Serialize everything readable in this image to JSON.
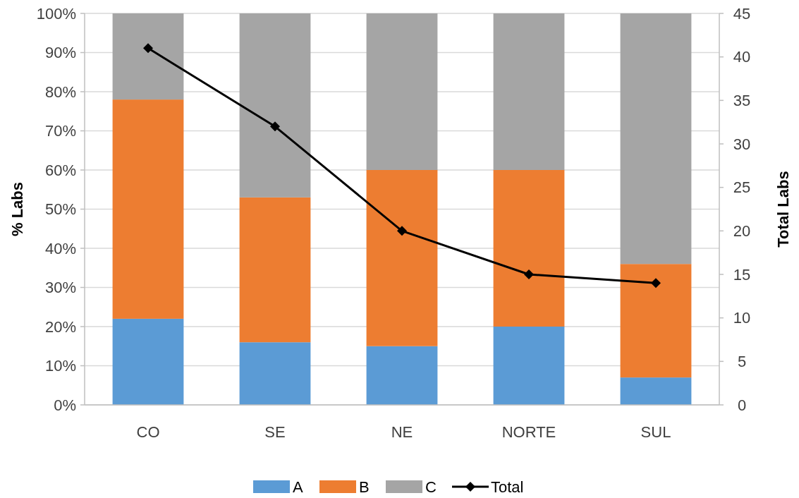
{
  "chart_data": {
    "type": "bar",
    "stacked": true,
    "categories": [
      "CO",
      "SE",
      "NE",
      "NORTE",
      "SUL"
    ],
    "ylabel": "% Labs",
    "y2label": "Total Labs",
    "series": [
      {
        "name": "A",
        "color": "#5b9bd5",
        "values": [
          22,
          16,
          15,
          20,
          7
        ]
      },
      {
        "name": "B",
        "color": "#ed7d31",
        "values": [
          56,
          37,
          45,
          40,
          29
        ]
      },
      {
        "name": "C",
        "color": "#a5a5a5",
        "values": [
          22,
          47,
          40,
          40,
          64
        ]
      },
      {
        "name": "Total",
        "type": "line",
        "axis": "y2",
        "color": "#000000",
        "marker": "diamond",
        "values": [
          41,
          32,
          20,
          15,
          14
        ]
      }
    ],
    "ylim": [
      0,
      100
    ],
    "yticks": [
      {
        "value": 0,
        "label": "0%"
      },
      {
        "value": 10,
        "label": "10%"
      },
      {
        "value": 20,
        "label": "20%"
      },
      {
        "value": 30,
        "label": "30%"
      },
      {
        "value": 40,
        "label": "40%"
      },
      {
        "value": 50,
        "label": "50%"
      },
      {
        "value": 60,
        "label": "60%"
      },
      {
        "value": 70,
        "label": "70%"
      },
      {
        "value": 80,
        "label": "80%"
      },
      {
        "value": 90,
        "label": "90%"
      },
      {
        "value": 100,
        "label": "100%"
      }
    ],
    "y2lim": [
      0,
      45
    ],
    "y2ticks": [
      0,
      5,
      10,
      15,
      20,
      25,
      30,
      35,
      40,
      45
    ],
    "grid": "y",
    "legend": "bottom"
  }
}
